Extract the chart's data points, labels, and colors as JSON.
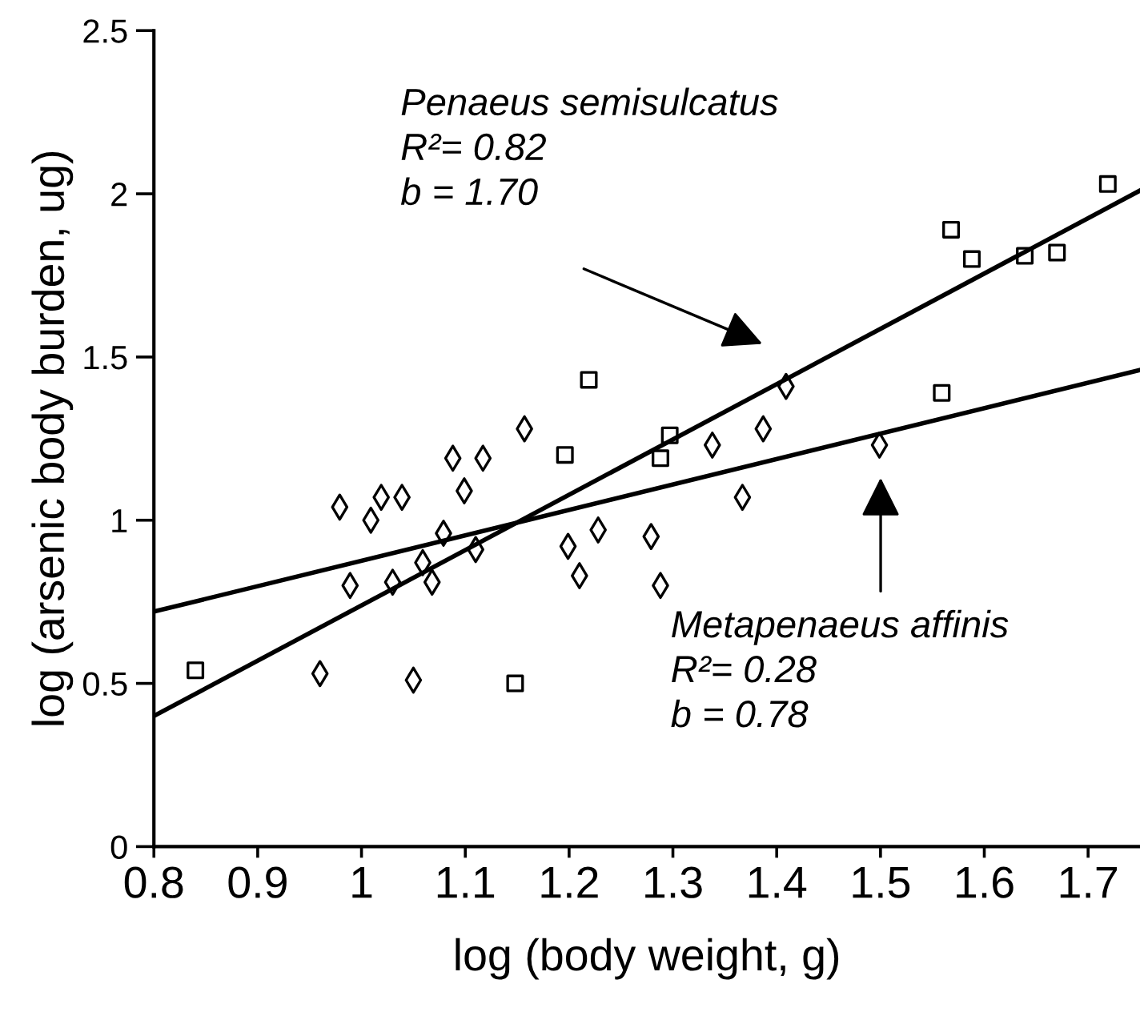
{
  "chart_data": {
    "type": "scatter",
    "xlabel": "log (body weight, g)",
    "ylabel": "log (arsenic body burden, ug)",
    "xlim": [
      0.8,
      1.75
    ],
    "xticks": [
      0.8,
      0.9,
      1,
      1.1,
      1.2,
      1.3,
      1.4,
      1.5,
      1.6,
      1.7
    ],
    "ylim": [
      0,
      2.5
    ],
    "yticks": [
      0,
      0.5,
      1,
      1.5,
      2,
      2.5
    ],
    "grid": false,
    "series": [
      {
        "marker": "square",
        "color": "#000000",
        "x": [
          0.84,
          1.148,
          1.196,
          1.219,
          1.297,
          1.288,
          1.559,
          1.568,
          1.588,
          1.639,
          1.67,
          1.719
        ],
        "values": [
          0.54,
          0.5,
          1.2,
          1.43,
          1.26,
          1.19,
          1.39,
          1.89,
          1.8,
          1.81,
          1.82,
          2.03
        ]
      },
      {
        "marker": "diamond",
        "color": "#000000",
        "x": [
          0.96,
          1.05,
          0.979,
          1.009,
          1.019,
          1.039,
          1.099,
          0.989,
          1.03,
          1.059,
          1.068,
          1.079,
          1.11,
          1.199,
          1.21,
          1.088,
          1.117,
          1.157,
          1.409,
          1.338,
          1.387,
          1.367,
          1.499,
          1.228,
          1.279,
          1.288
        ],
        "values": [
          0.53,
          0.51,
          1.04,
          1.0,
          1.07,
          1.07,
          1.09,
          0.8,
          0.81,
          0.87,
          0.81,
          0.96,
          0.91,
          0.92,
          0.83,
          1.19,
          1.19,
          1.28,
          1.41,
          1.23,
          1.28,
          1.07,
          1.23,
          0.97,
          0.95,
          0.8
        ]
      },
      {
        "type": "line",
        "color": "#000000",
        "x": [
          0.8,
          1.75
        ],
        "values": [
          0.4,
          2.01
        ]
      },
      {
        "type": "line",
        "color": "#000000",
        "x": [
          0.8,
          1.75
        ],
        "values": [
          0.72,
          1.46
        ]
      }
    ],
    "annotations": [
      "Penaeus semisulcatus\nR²= 0.82\nb = 1.70",
      "Metapenaeus affinis\nR²= 0.28\nb = 0.78"
    ]
  }
}
